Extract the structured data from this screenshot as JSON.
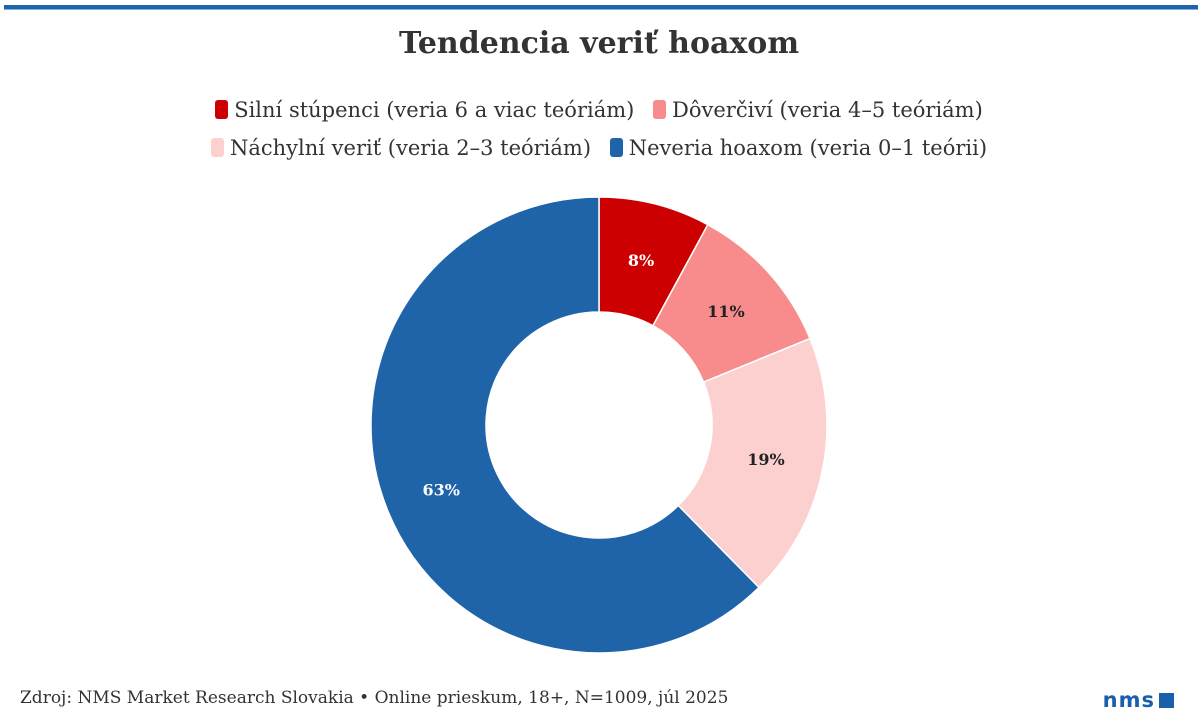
{
  "chart_data": {
    "type": "pie",
    "variant": "donut",
    "title": "Tendencia veriť hoaxom",
    "slices": [
      {
        "name": "Silní stúpenci (veria 6 a viac teóriám)",
        "value": 8,
        "label": "8%",
        "color": "#cc0000",
        "label_color": "#ffffff"
      },
      {
        "name": "Dôverčiví (veria 4–5 teóriám)",
        "value": 11,
        "label": "11%",
        "color": "#f88b8b",
        "label_color": "#222222"
      },
      {
        "name": "Náchylní veriť (veria 2–3 teóriám)",
        "value": 19,
        "label": "19%",
        "color": "#fdd0d0",
        "label_color": "#222222"
      },
      {
        "name": "Neveria hoaxom (veria 0–1 teórii)",
        "value": 63,
        "label": "63%",
        "color": "#1f63a8",
        "label_color": "#ffffff"
      }
    ],
    "start_angle": "top",
    "direction": "clockwise",
    "legend_position": "top"
  },
  "footer": "Zdroj: NMS Market Research Slovakia • Online prieskum, 18+, N=1009, júl 2025",
  "logo": "nms",
  "colors": {
    "accent": "#1f63a8"
  }
}
